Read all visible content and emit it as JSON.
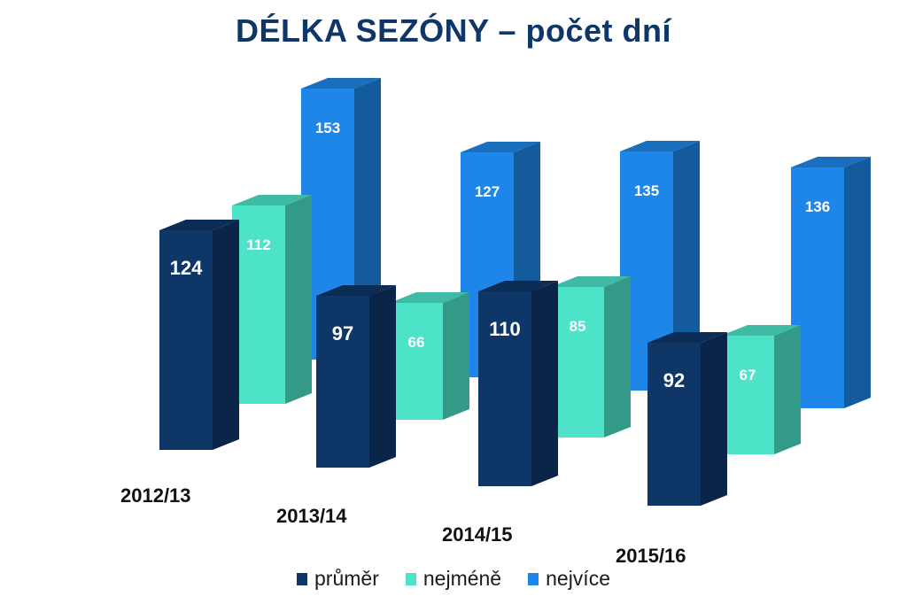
{
  "chart_data": {
    "type": "bar",
    "title": "DÉLKA SEZÓNY – počet dní",
    "categories": [
      "2012/13",
      "2013/14",
      "2014/15",
      "2015/16"
    ],
    "series": [
      {
        "name": "průměr",
        "color": "#0e3768",
        "values": [
          124,
          97,
          110,
          92
        ]
      },
      {
        "name": "nejméně",
        "color": "#4de3c8",
        "values": [
          112,
          66,
          85,
          67
        ]
      },
      {
        "name": "nejvíce",
        "color": "#1e86e8",
        "values": [
          153,
          127,
          135,
          136
        ]
      }
    ],
    "xlabel": "",
    "ylabel": "",
    "legend_position": "bottom",
    "grid": false,
    "style": "3d-columns"
  }
}
